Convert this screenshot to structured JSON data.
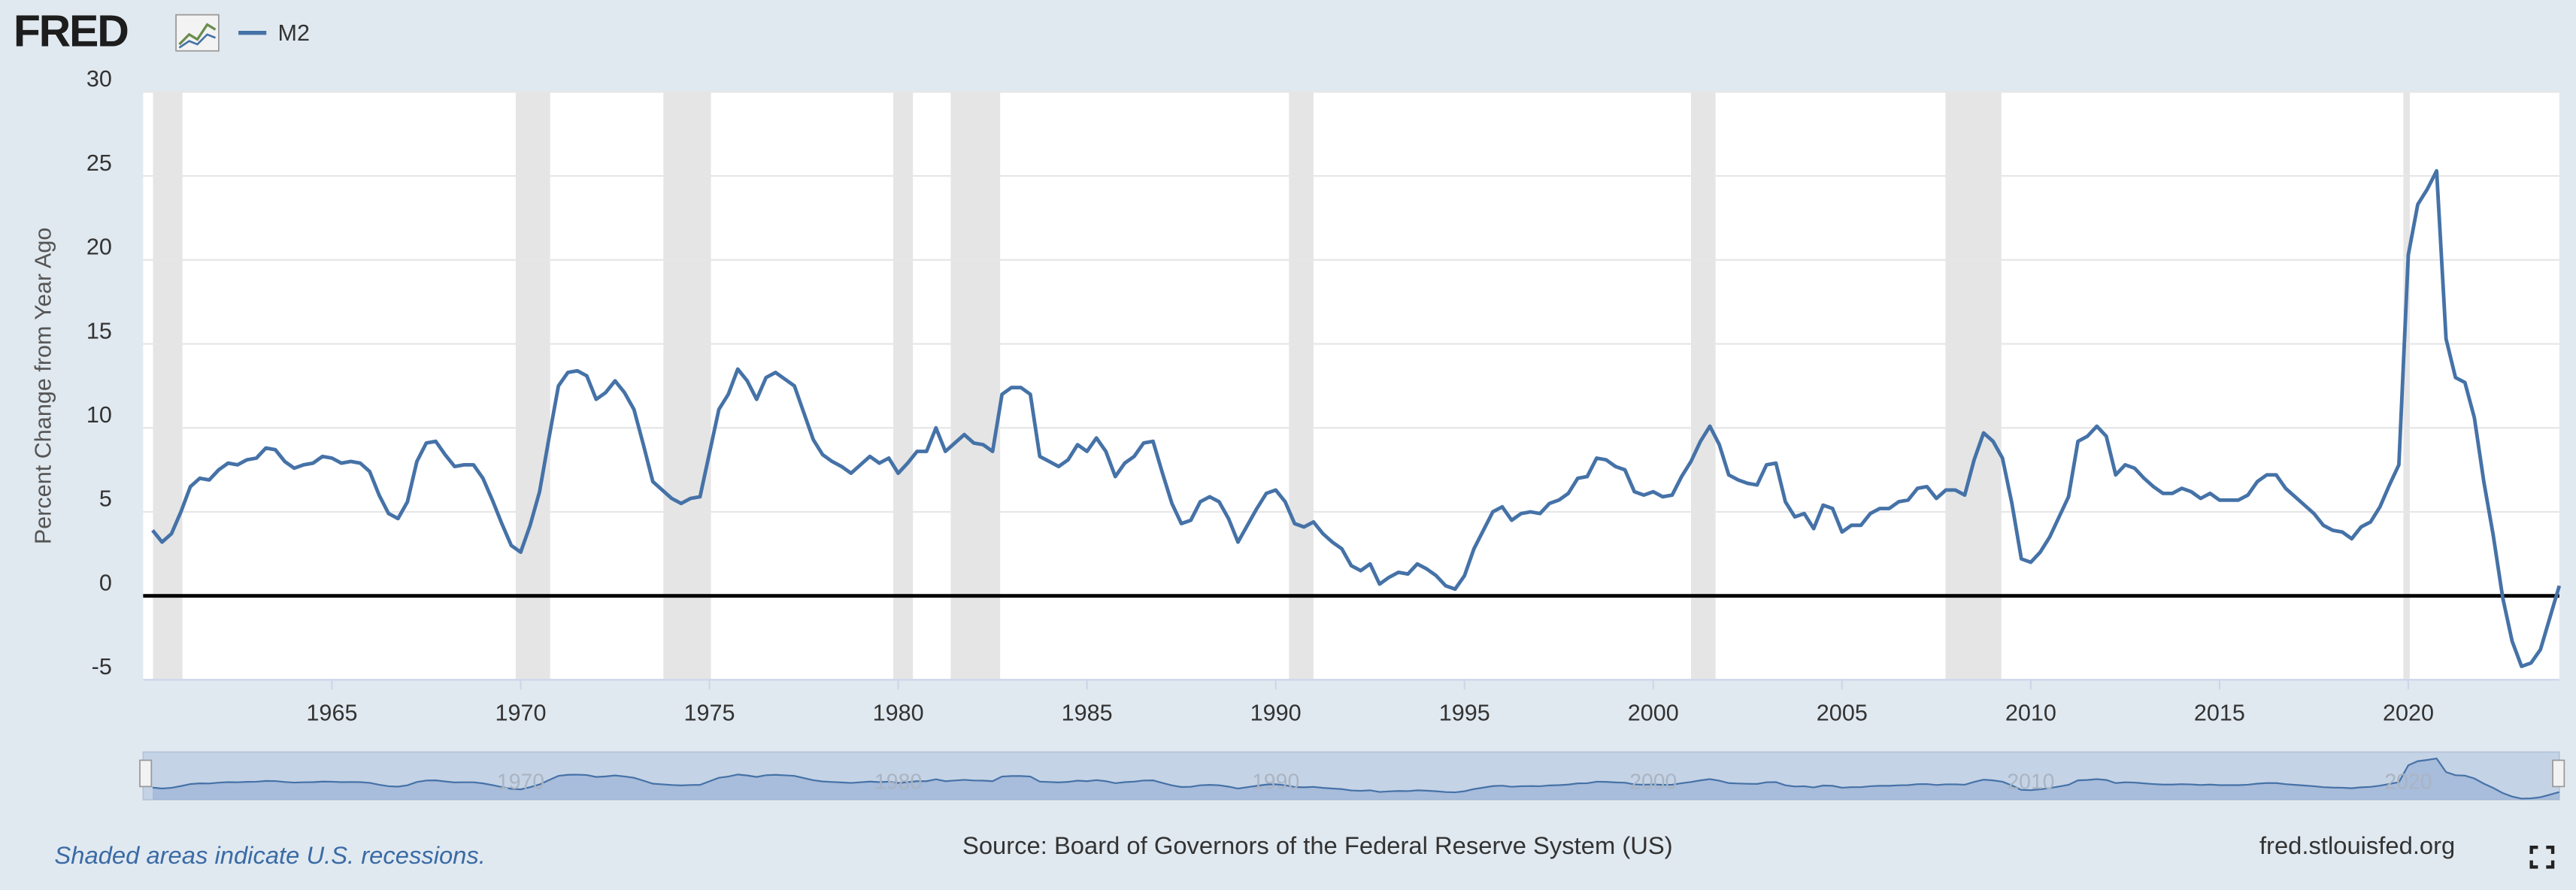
{
  "chart_data": {
    "type": "line",
    "logo": "FRED",
    "y_label": "Percent Change from Year Ago",
    "note": "Shaded areas indicate U.S. recessions.",
    "source": "Source: Board of Governors of the Federal Reserve System (US)",
    "site": "fred.stlouisfed.org",
    "xlim": [
      1960,
      2024
    ],
    "ylim": [
      -5,
      30
    ],
    "xticks": [
      1965,
      1970,
      1975,
      1980,
      1985,
      1990,
      1995,
      2000,
      2005,
      2010,
      2015,
      2020
    ],
    "yticks": [
      -5,
      0,
      5,
      10,
      15,
      20,
      25,
      30
    ],
    "navigator_ticks": [
      1970,
      1980,
      1990,
      2000,
      2010,
      2020
    ],
    "grid": true,
    "recessions": [
      [
        1960.26,
        1961.04
      ],
      [
        1969.87,
        1970.78
      ],
      [
        1973.78,
        1975.04
      ],
      [
        1979.87,
        1980.39
      ],
      [
        1981.39,
        1982.7
      ],
      [
        1990.35,
        1991.0
      ],
      [
        2001.0,
        2001.65
      ],
      [
        2007.74,
        2009.22
      ],
      [
        2019.87,
        2020.04
      ]
    ],
    "x": [
      1960.25,
      1960.5,
      1960.75,
      1961,
      1961.25,
      1961.5,
      1961.75,
      1962,
      1962.25,
      1962.5,
      1962.75,
      1963,
      1963.25,
      1963.5,
      1963.75,
      1964,
      1964.25,
      1964.5,
      1964.75,
      1965,
      1965.25,
      1965.5,
      1965.75,
      1966,
      1966.25,
      1966.5,
      1966.75,
      1967,
      1967.25,
      1967.5,
      1967.75,
      1968,
      1968.25,
      1968.5,
      1968.75,
      1969,
      1969.25,
      1969.5,
      1969.75,
      1970,
      1970.25,
      1970.5,
      1970.75,
      1971,
      1971.25,
      1971.5,
      1971.75,
      1972,
      1972.25,
      1972.5,
      1972.75,
      1973,
      1973.25,
      1973.5,
      1973.75,
      1974,
      1974.25,
      1974.5,
      1974.75,
      1975,
      1975.25,
      1975.5,
      1975.75,
      1976,
      1976.25,
      1976.5,
      1976.75,
      1977,
      1977.25,
      1977.5,
      1977.75,
      1978,
      1978.25,
      1978.5,
      1978.75,
      1979,
      1979.25,
      1979.5,
      1979.75,
      1980,
      1980.25,
      1980.5,
      1980.75,
      1981,
      1981.25,
      1981.5,
      1981.75,
      1982,
      1982.25,
      1982.5,
      1982.75,
      1983,
      1983.25,
      1983.5,
      1983.75,
      1984,
      1984.25,
      1984.5,
      1984.75,
      1985,
      1985.25,
      1985.5,
      1985.75,
      1986,
      1986.25,
      1986.5,
      1986.75,
      1987,
      1987.25,
      1987.5,
      1987.75,
      1988,
      1988.25,
      1988.5,
      1988.75,
      1989,
      1989.25,
      1989.5,
      1989.75,
      1990,
      1990.25,
      1990.5,
      1990.75,
      1991,
      1991.25,
      1991.5,
      1991.75,
      1992,
      1992.25,
      1992.5,
      1992.75,
      1993,
      1993.25,
      1993.5,
      1993.75,
      1994,
      1994.25,
      1994.5,
      1994.75,
      1995,
      1995.25,
      1995.5,
      1995.75,
      1996,
      1996.25,
      1996.5,
      1996.75,
      1997,
      1997.25,
      1997.5,
      1997.75,
      1998,
      1998.25,
      1998.5,
      1998.75,
      1999,
      1999.25,
      1999.5,
      1999.75,
      2000,
      2000.25,
      2000.5,
      2000.75,
      2001,
      2001.25,
      2001.5,
      2001.75,
      2002,
      2002.25,
      2002.5,
      2002.75,
      2003,
      2003.25,
      2003.5,
      2003.75,
      2004,
      2004.25,
      2004.5,
      2004.75,
      2005,
      2005.25,
      2005.5,
      2005.75,
      2006,
      2006.25,
      2006.5,
      2006.75,
      2007,
      2007.25,
      2007.5,
      2007.75,
      2008,
      2008.25,
      2008.5,
      2008.75,
      2009,
      2009.25,
      2009.5,
      2009.75,
      2010,
      2010.25,
      2010.5,
      2010.75,
      2011,
      2011.25,
      2011.5,
      2011.75,
      2012,
      2012.25,
      2012.5,
      2012.75,
      2013,
      2013.25,
      2013.5,
      2013.75,
      2014,
      2014.25,
      2014.5,
      2014.75,
      2015,
      2015.25,
      2015.5,
      2015.75,
      2016,
      2016.25,
      2016.5,
      2016.75,
      2017,
      2017.25,
      2017.5,
      2017.75,
      2018,
      2018.25,
      2018.5,
      2018.75,
      2019,
      2019.25,
      2019.5,
      2019.75,
      2020,
      2020.25,
      2020.5,
      2020.75,
      2021,
      2021.25,
      2021.5,
      2021.75,
      2022,
      2022.25,
      2022.5,
      2022.75,
      2023,
      2023.25,
      2023.5,
      2023.75,
      2024
    ],
    "series": [
      {
        "name": "M2",
        "color": "#4572a7",
        "values": [
          3.9,
          3.2,
          3.7,
          5.0,
          6.5,
          7.0,
          6.9,
          7.5,
          7.9,
          7.8,
          8.1,
          8.2,
          8.8,
          8.7,
          8.0,
          7.6,
          7.8,
          7.9,
          8.3,
          8.2,
          7.9,
          8.0,
          7.9,
          7.4,
          6.0,
          4.9,
          4.6,
          5.6,
          8.0,
          9.1,
          9.2,
          8.4,
          7.7,
          7.8,
          7.8,
          7.0,
          5.7,
          4.3,
          3.0,
          2.6,
          4.2,
          6.2,
          9.4,
          12.5,
          13.3,
          13.4,
          13.1,
          11.7,
          12.1,
          12.8,
          12.1,
          11.1,
          9.0,
          6.8,
          6.3,
          5.8,
          5.5,
          5.8,
          5.9,
          8.5,
          11.1,
          12.0,
          13.5,
          12.8,
          11.7,
          13.0,
          13.3,
          12.9,
          12.5,
          10.9,
          9.3,
          8.4,
          8.0,
          7.7,
          7.3,
          7.8,
          8.3,
          7.9,
          8.2,
          7.3,
          7.9,
          8.6,
          8.6,
          10.0,
          8.6,
          9.1,
          9.6,
          9.1,
          9.0,
          8.6,
          12.0,
          12.4,
          12.4,
          12.0,
          8.3,
          8.0,
          7.7,
          8.1,
          9.0,
          8.6,
          9.4,
          8.6,
          7.1,
          7.9,
          8.3,
          9.1,
          9.2,
          7.3,
          5.5,
          4.3,
          4.5,
          5.6,
          5.9,
          5.6,
          4.6,
          3.2,
          4.2,
          5.2,
          6.1,
          6.3,
          5.6,
          4.3,
          4.1,
          4.4,
          3.7,
          3.2,
          2.8,
          1.8,
          1.5,
          1.9,
          0.7,
          1.1,
          1.4,
          1.3,
          1.9,
          1.6,
          1.2,
          0.6,
          0.4,
          1.2,
          2.8,
          3.9,
          5.0,
          5.3,
          4.5,
          4.9,
          5.0,
          4.9,
          5.5,
          5.7,
          6.1,
          7.0,
          7.1,
          8.2,
          8.1,
          7.7,
          7.5,
          6.2,
          6.0,
          6.2,
          5.9,
          6.0,
          7.1,
          8.0,
          9.2,
          10.1,
          9.0,
          7.2,
          6.9,
          6.7,
          6.6,
          7.8,
          7.9,
          5.6,
          4.7,
          4.9,
          4.0,
          5.4,
          5.2,
          3.8,
          4.2,
          4.2,
          4.9,
          5.2,
          5.2,
          5.6,
          5.7,
          6.4,
          6.5,
          5.8,
          6.3,
          6.3,
          6.0,
          8.1,
          9.7,
          9.2,
          8.2,
          5.5,
          2.2,
          2.0,
          2.6,
          3.5,
          4.7,
          5.9,
          9.2,
          9.5,
          10.1,
          9.5,
          7.2,
          7.8,
          7.6,
          7.0,
          6.5,
          6.1,
          6.1,
          6.4,
          6.2,
          5.8,
          6.1,
          5.7,
          5.7,
          5.7,
          6.0,
          6.8,
          7.2,
          7.2,
          6.4,
          5.9,
          5.4,
          4.9,
          4.2,
          3.9,
          3.8,
          3.4,
          4.1,
          4.4,
          5.3,
          6.6,
          7.8,
          20.3,
          23.3,
          24.2,
          25.3,
          15.3,
          13.0,
          12.7,
          10.6,
          6.8,
          3.6,
          -0.1,
          -2.7,
          -4.2,
          -4.0,
          -3.2,
          -1.3,
          0.6
        ]
      }
    ]
  }
}
